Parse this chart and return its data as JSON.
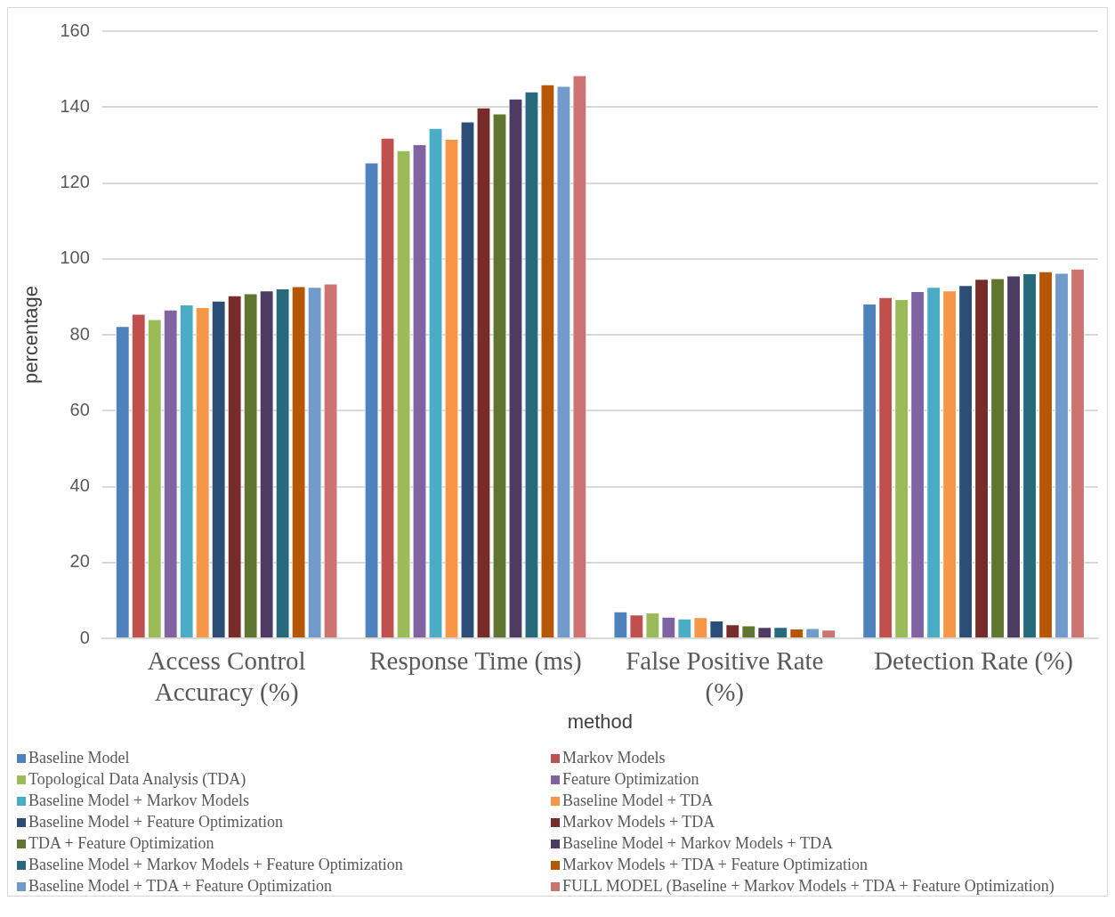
{
  "chart_data": {
    "type": "bar",
    "xlabel": "method",
    "ylabel": "percentage",
    "categories": [
      "Access Control Accuracy (%)",
      "Response Time (ms)",
      "False Positive Rate (%)",
      "Detection Rate (%)"
    ],
    "ylim": [
      0,
      160
    ],
    "yticks": [
      0,
      20,
      40,
      60,
      80,
      100,
      120,
      140,
      160
    ],
    "grid": "y",
    "legend": "bottom",
    "series": [
      {
        "name": "Baseline Model",
        "color": "#4f81bd",
        "values": [
          82.3,
          125.4,
          7.1,
          88.2
        ]
      },
      {
        "name": "Markov Models",
        "color": "#c0504d",
        "values": [
          85.5,
          131.9,
          6.3,
          89.9
        ]
      },
      {
        "name": "Topological Data Analysis (TDA)",
        "color": "#9bbb59",
        "values": [
          84.1,
          128.6,
          6.8,
          89.4
        ]
      },
      {
        "name": "Feature Optimization",
        "color": "#8064a2",
        "values": [
          86.6,
          130.2,
          5.7,
          91.5
        ]
      },
      {
        "name": "Baseline Model + Markov Models",
        "color": "#4bacc6",
        "values": [
          88.0,
          134.5,
          5.2,
          92.6
        ]
      },
      {
        "name": "Baseline Model + TDA",
        "color": "#f79646",
        "values": [
          87.3,
          131.6,
          5.6,
          91.7
        ]
      },
      {
        "name": "Baseline Model + Feature Optimization",
        "color": "#2c4d75",
        "values": [
          89.0,
          136.2,
          4.7,
          93.1
        ]
      },
      {
        "name": "Markov Models + TDA",
        "color": "#772c2a",
        "values": [
          90.4,
          139.9,
          3.7,
          94.7
        ]
      },
      {
        "name": "TDA + Feature Optimization",
        "color": "#5f7530",
        "values": [
          90.9,
          138.3,
          3.4,
          94.9
        ]
      },
      {
        "name": "Baseline Model + Markov Models + TDA",
        "color": "#4d3b62",
        "values": [
          91.7,
          142.2,
          3.0,
          95.6
        ]
      },
      {
        "name": "Baseline Model + Markov Models + Feature Optimization",
        "color": "#276a7c",
        "values": [
          92.2,
          144.1,
          3.0,
          96.2
        ]
      },
      {
        "name": "Markov Models + TDA + Feature Optimization",
        "color": "#b65708",
        "values": [
          92.8,
          146.0,
          2.6,
          96.7
        ]
      },
      {
        "name": "Baseline Model + TDA + Feature Optimization",
        "color": "#729aca",
        "values": [
          92.6,
          145.6,
          2.7,
          96.3
        ]
      },
      {
        "name": "FULL MODEL (Baseline + Markov Models + TDA + Feature Optimization)",
        "color": "#cd7371",
        "values": [
          93.5,
          148.4,
          2.3,
          97.4
        ]
      }
    ]
  }
}
